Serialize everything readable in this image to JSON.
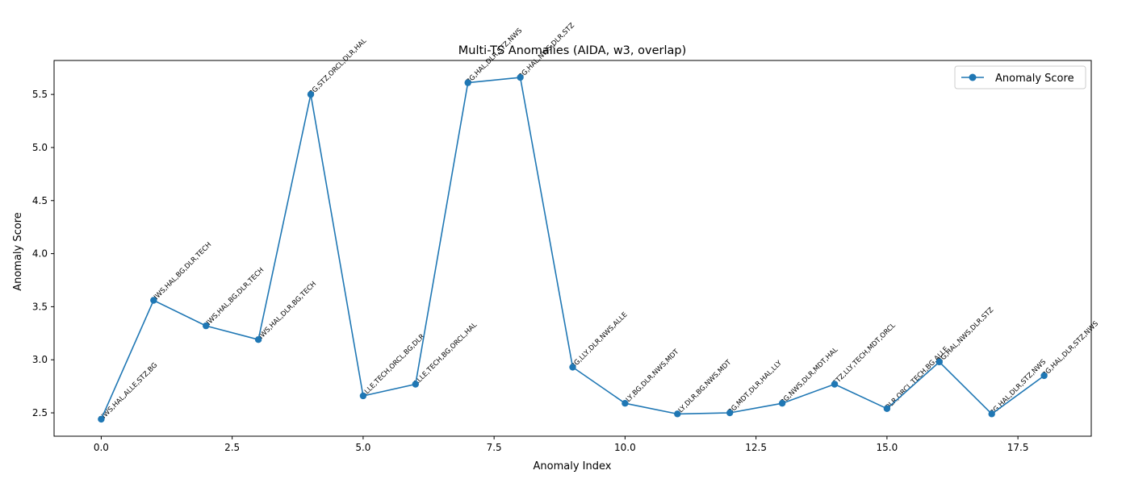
{
  "chart_data": {
    "type": "line",
    "title": "Multi-TS Anomalies (AIDA, w3, overlap)",
    "xlabel": "Anomaly Index",
    "ylabel": "Anomaly Score",
    "xlim": [
      -0.9,
      18.9
    ],
    "ylim": [
      2.28,
      5.82
    ],
    "x_ticks": [
      0.0,
      2.5,
      5.0,
      7.5,
      10.0,
      12.5,
      15.0,
      17.5
    ],
    "x_tick_labels": [
      "0.0",
      "2.5",
      "5.0",
      "7.5",
      "10.0",
      "12.5",
      "15.0",
      "17.5"
    ],
    "y_ticks": [
      2.5,
      3.0,
      3.5,
      4.0,
      4.5,
      5.0,
      5.5
    ],
    "y_tick_labels": [
      "2.5",
      "3.0",
      "3.5",
      "4.0",
      "4.5",
      "5.0",
      "5.5"
    ],
    "grid": false,
    "legend_position": "upper-right",
    "series": [
      {
        "name": "Anomaly Score",
        "color": "#1f77b4",
        "marker": "circle",
        "x": [
          0,
          1,
          2,
          3,
          4,
          5,
          6,
          7,
          8,
          9,
          10,
          11,
          12,
          13,
          14,
          15,
          16,
          17,
          18
        ],
        "values": [
          2.44,
          3.56,
          3.32,
          3.19,
          5.5,
          2.66,
          2.77,
          5.61,
          5.66,
          2.93,
          2.59,
          2.49,
          2.5,
          2.59,
          2.77,
          2.54,
          2.98,
          2.49,
          2.85
        ]
      }
    ],
    "annotations": [
      "NWS,HAL,ALLE,STZ,BG",
      "NWS,HAL,BG,DLR,TECH",
      "NWS,HAL,BG,DLR,TECH",
      "NWS,HAL,DLR,BG,TECH",
      "BG,STZ,ORCL,DLR,HAL",
      "ALLE,TECH,ORCL,BG,DLR",
      "ALLE,TECH,BG,ORCL,HAL",
      "BG,HAL,DLR,STZ,NWS",
      "BG,HAL,NWS,DLR,STZ",
      "BG,LLY,DLR,NWS,ALLE",
      "LLY,BG,DLR,NWS,MDT",
      "LLY,DLR,BG,NWS,MDT",
      "BG,MDT,DLR,HAL,LLY",
      "BG,NWS,DLR,MDT,HAL",
      "STZ,LLY,TECH,MDT,ORCL",
      "DLR,ORCL,TECH,BG,ALLE",
      "BG,HAL,NWS,DLR,STZ",
      "BG,HAL,DLR,STZ,NWS",
      "BG,HAL,DLR,STZ,NWS"
    ]
  }
}
